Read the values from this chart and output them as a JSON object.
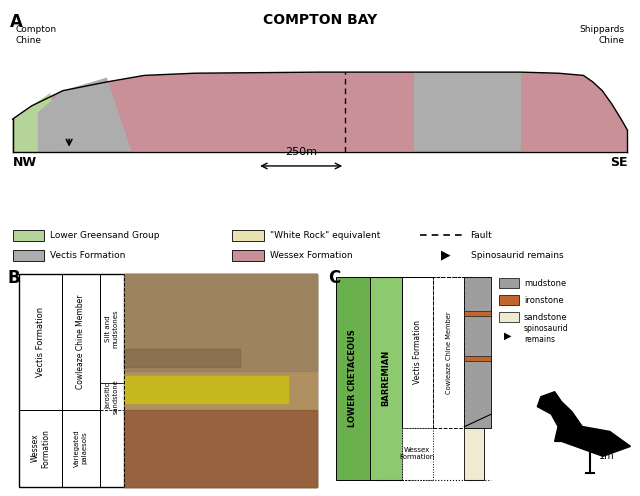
{
  "title_A": "COMPTON BAY",
  "label_NW": "NW",
  "label_SE": "SE",
  "label_compton": "Compton\nChine",
  "label_shippards": "Shippards\nChine",
  "scale_label": "250m",
  "colors": {
    "green": "#b5d49a",
    "grey": "#adadad",
    "pink": "#c99098",
    "cream": "#e8e4b0",
    "mudstone": "#9e9e9e",
    "ironstone": "#c0652b",
    "sandstone": "#f0ead2",
    "lc_green": "#6ab04c",
    "barremian_green": "#8dc96e"
  }
}
